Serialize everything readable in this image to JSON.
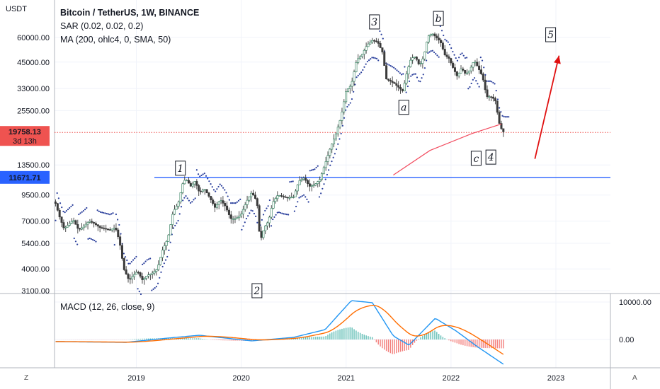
{
  "chart_data": {
    "type": "candlestick",
    "title": "Bitcoin / TetherUS, 1W, BINANCE",
    "currency_label": "USDT",
    "indicators": [
      "SAR (0.02, 0.02, 0.2)",
      "MA (200, ohlc4, 0, SMA, 50)"
    ],
    "price_ticks": [
      "60000.00",
      "45000.00",
      "33000.00",
      "25500.00",
      "13500.00",
      "9500.00",
      "7000.00",
      "5400.00",
      "4000.00",
      "3100.00"
    ],
    "x_ticks": [
      "2019",
      "2020",
      "2021",
      "2022",
      "2023"
    ],
    "current_price": {
      "value": "19758.13",
      "countdown": "3d 13h",
      "color": "#ef5350"
    },
    "horizontal_line": {
      "value": "11671.71",
      "color": "#2962ff"
    },
    "price_path": [
      [
        2018.23,
        8600
      ],
      [
        2018.27,
        7300
      ],
      [
        2018.31,
        6400
      ],
      [
        2018.35,
        6700
      ],
      [
        2018.4,
        7100
      ],
      [
        2018.45,
        6300
      ],
      [
        2018.5,
        6600
      ],
      [
        2018.55,
        7000
      ],
      [
        2018.6,
        6800
      ],
      [
        2018.65,
        6500
      ],
      [
        2018.7,
        6400
      ],
      [
        2018.75,
        6300
      ],
      [
        2018.8,
        6500
      ],
      [
        2018.84,
        5500
      ],
      [
        2018.88,
        4000
      ],
      [
        2018.93,
        3500
      ],
      [
        2018.97,
        3700
      ],
      [
        2019.01,
        3900
      ],
      [
        2019.06,
        3500
      ],
      [
        2019.1,
        3700
      ],
      [
        2019.15,
        3800
      ],
      [
        2019.2,
        4000
      ],
      [
        2019.25,
        5000
      ],
      [
        2019.3,
        5700
      ],
      [
        2019.35,
        7800
      ],
      [
        2019.4,
        8600
      ],
      [
        2019.44,
        10800
      ],
      [
        2019.47,
        11500
      ],
      [
        2019.52,
        10500
      ],
      [
        2019.56,
        11200
      ],
      [
        2019.6,
        9800
      ],
      [
        2019.65,
        10200
      ],
      [
        2019.7,
        9200
      ],
      [
        2019.75,
        8200
      ],
      [
        2019.8,
        9000
      ],
      [
        2019.85,
        8300
      ],
      [
        2019.9,
        7200
      ],
      [
        2019.95,
        7200
      ],
      [
        2020.0,
        7600
      ],
      [
        2020.05,
        8800
      ],
      [
        2020.1,
        9800
      ],
      [
        2020.15,
        8800
      ],
      [
        2020.18,
        5500
      ],
      [
        2020.22,
        6500
      ],
      [
        2020.26,
        7000
      ],
      [
        2020.3,
        8700
      ],
      [
        2020.35,
        9500
      ],
      [
        2020.4,
        9300
      ],
      [
        2020.45,
        9200
      ],
      [
        2020.5,
        9300
      ],
      [
        2020.55,
        11200
      ],
      [
        2020.6,
        11600
      ],
      [
        2020.65,
        10500
      ],
      [
        2020.7,
        10700
      ],
      [
        2020.75,
        11400
      ],
      [
        2020.8,
        13700
      ],
      [
        2020.85,
        16500
      ],
      [
        2020.9,
        19200
      ],
      [
        2020.95,
        23500
      ],
      [
        2021.0,
        32000
      ],
      [
        2021.05,
        34500
      ],
      [
        2021.1,
        46000
      ],
      [
        2021.15,
        49000
      ],
      [
        2021.2,
        55000
      ],
      [
        2021.25,
        58000
      ],
      [
        2021.3,
        57000
      ],
      [
        2021.35,
        50000
      ],
      [
        2021.38,
        37000
      ],
      [
        2021.42,
        36000
      ],
      [
        2021.46,
        35000
      ],
      [
        2021.5,
        33500
      ],
      [
        2021.54,
        32000
      ],
      [
        2021.58,
        40000
      ],
      [
        2021.62,
        47000
      ],
      [
        2021.66,
        48000
      ],
      [
        2021.7,
        43000
      ],
      [
        2021.74,
        48000
      ],
      [
        2021.78,
        61000
      ],
      [
        2021.82,
        63000
      ],
      [
        2021.86,
        60000
      ],
      [
        2021.9,
        57000
      ],
      [
        2021.94,
        49000
      ],
      [
        2021.98,
        47000
      ],
      [
        2022.02,
        42000
      ],
      [
        2022.06,
        38000
      ],
      [
        2022.1,
        42000
      ],
      [
        2022.14,
        39000
      ],
      [
        2022.18,
        41000
      ],
      [
        2022.22,
        46000
      ],
      [
        2022.26,
        42000
      ],
      [
        2022.3,
        38000
      ],
      [
        2022.34,
        30000
      ],
      [
        2022.38,
        30000
      ],
      [
        2022.42,
        29000
      ],
      [
        2022.46,
        22000
      ],
      [
        2022.49,
        20000
      ],
      [
        2022.51,
        19758
      ]
    ],
    "ma_path": [
      [
        2021.45,
        12000
      ],
      [
        2021.8,
        16000
      ],
      [
        2022.2,
        19500
      ],
      [
        2022.48,
        21800
      ]
    ],
    "macd": {
      "label": "MACD (12, 26, close, 9)",
      "y_ticks": [
        "10000.00",
        "0.00"
      ],
      "macd_color": "#2196f3",
      "signal_color": "#ff6d00"
    },
    "annotations": [
      {
        "text": "1",
        "x": 2019.42,
        "y": 13000
      },
      {
        "text": "2",
        "x": 2020.15,
        "y": 3100
      },
      {
        "text": "3",
        "x": 2021.27,
        "y": 72000
      },
      {
        "text": "a",
        "x": 2021.55,
        "y": 26500
      },
      {
        "text": "b",
        "x": 2021.88,
        "y": 75000
      },
      {
        "text": "c",
        "x": 2022.24,
        "y": 14600
      },
      {
        "text": "4",
        "x": 2022.38,
        "y": 14800
      },
      {
        "text": "5",
        "x": 2022.95,
        "y": 62000
      }
    ],
    "arrow": {
      "from": [
        2022.8,
        14500
      ],
      "to": [
        2023.03,
        48500
      ],
      "color": "#e01010"
    },
    "corner_buttons": {
      "left": "Z",
      "right": "A"
    }
  }
}
